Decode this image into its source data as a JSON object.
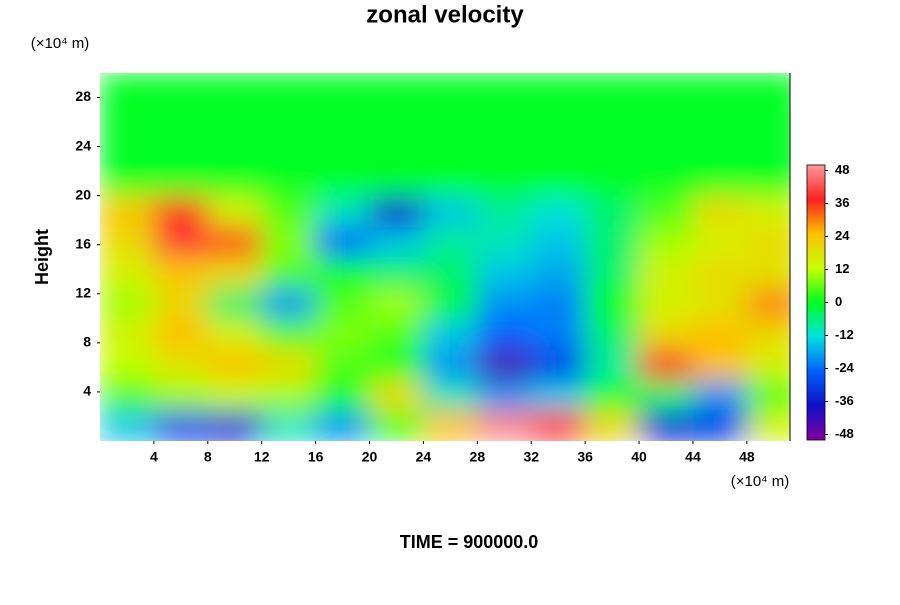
{
  "chart_data": {
    "type": "heatmap",
    "title": "zonal velocity",
    "ylabel": "Height",
    "xunit": "(×10⁴ m)",
    "yunit": "(×10⁴ m)",
    "footer": "TIME = 900000.0",
    "xlim": [
      0,
      51.2
    ],
    "ylim": [
      0,
      30
    ],
    "xticks": [
      4,
      8,
      12,
      16,
      20,
      24,
      28,
      32,
      36,
      40,
      44,
      48
    ],
    "yticks": [
      4,
      8,
      12,
      16,
      20,
      24,
      28
    ],
    "x": [
      2,
      6,
      10,
      14,
      18,
      22,
      26,
      30,
      34,
      38,
      42,
      46,
      50
    ],
    "y": [
      1.25,
      3.75,
      6.25,
      8.75,
      11.25,
      13.75,
      16.25,
      18.75,
      21.25,
      23.75,
      26.25,
      28.75
    ],
    "z": [
      [
        -15,
        -30,
        -35,
        -10,
        -20,
        5,
        25,
        48,
        40,
        20,
        -35,
        -30,
        15
      ],
      [
        5,
        10,
        12,
        10,
        0,
        20,
        -10,
        -20,
        -15,
        0,
        -5,
        -20,
        5
      ],
      [
        12,
        18,
        25,
        20,
        5,
        0,
        -20,
        -44,
        -30,
        -8,
        38,
        25,
        15
      ],
      [
        15,
        25,
        15,
        5,
        8,
        5,
        -15,
        -25,
        -22,
        -5,
        20,
        25,
        20
      ],
      [
        10,
        20,
        -5,
        -20,
        5,
        10,
        -2,
        -20,
        -22,
        0,
        15,
        18,
        30
      ],
      [
        15,
        24,
        20,
        5,
        0,
        -5,
        -5,
        -15,
        -18,
        -5,
        15,
        20,
        18
      ],
      [
        20,
        40,
        35,
        8,
        -25,
        -15,
        -8,
        -10,
        -15,
        -5,
        10,
        15,
        20
      ],
      [
        24,
        36,
        15,
        5,
        -10,
        -36,
        -15,
        -8,
        -12,
        -5,
        5,
        20,
        15
      ],
      [
        0,
        0,
        0,
        0,
        0,
        0,
        0,
        0,
        0,
        0,
        0,
        0,
        0
      ],
      [
        0,
        0,
        0,
        0,
        0,
        0,
        0,
        0,
        0,
        0,
        0,
        0,
        0
      ],
      [
        0,
        0,
        0,
        0,
        0,
        0,
        0,
        0,
        0,
        0,
        0,
        0,
        0
      ],
      [
        0,
        0,
        0,
        0,
        0,
        0,
        0,
        0,
        0,
        0,
        0,
        0,
        0
      ]
    ],
    "zlim": [
      -50,
      50
    ],
    "cticks": [
      -48,
      -36,
      -24,
      -12,
      0,
      12,
      24,
      36,
      48
    ],
    "colors": [
      "#8000a0",
      "#1010c8",
      "#0060ff",
      "#00e0e0",
      "#00ff20",
      "#c8ff00",
      "#ffc000",
      "#ff2020",
      "#ff9a9a"
    ]
  }
}
